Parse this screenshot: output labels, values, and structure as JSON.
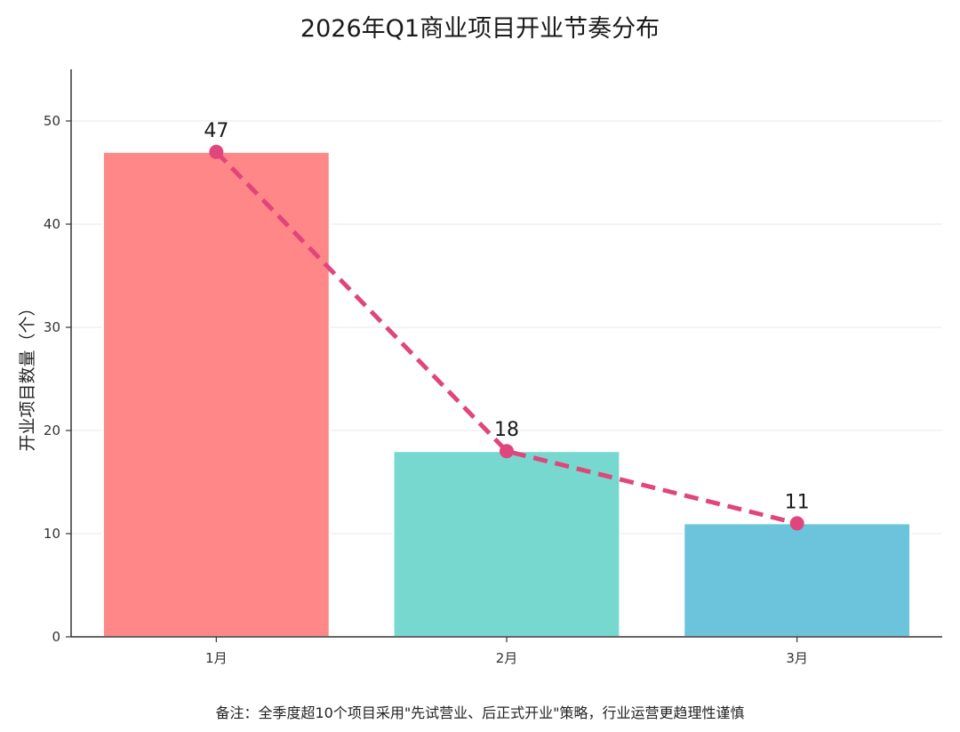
{
  "chart_data": {
    "type": "bar",
    "title": "2026年Q1商业项目开业节奏分布",
    "categories": [
      "1月",
      "2月",
      "3月"
    ],
    "values": [
      47,
      18,
      11
    ],
    "ylabel": "开业项目数量（个）",
    "xlabel": "",
    "ylim": [
      0,
      55
    ],
    "yticks": [
      0,
      10,
      20,
      30,
      40,
      50
    ],
    "grid": true,
    "bar_colors": [
      "#FF8787",
      "#76D8CF",
      "#6BC3DC"
    ],
    "line_overlay": {
      "style": "dashed",
      "color": "#E0457B",
      "marker": "circle"
    },
    "footnote": "备注：全季度超10个项目采用\"先试营业、后正式开业\"策略，行业运营更趋理性谨慎"
  }
}
